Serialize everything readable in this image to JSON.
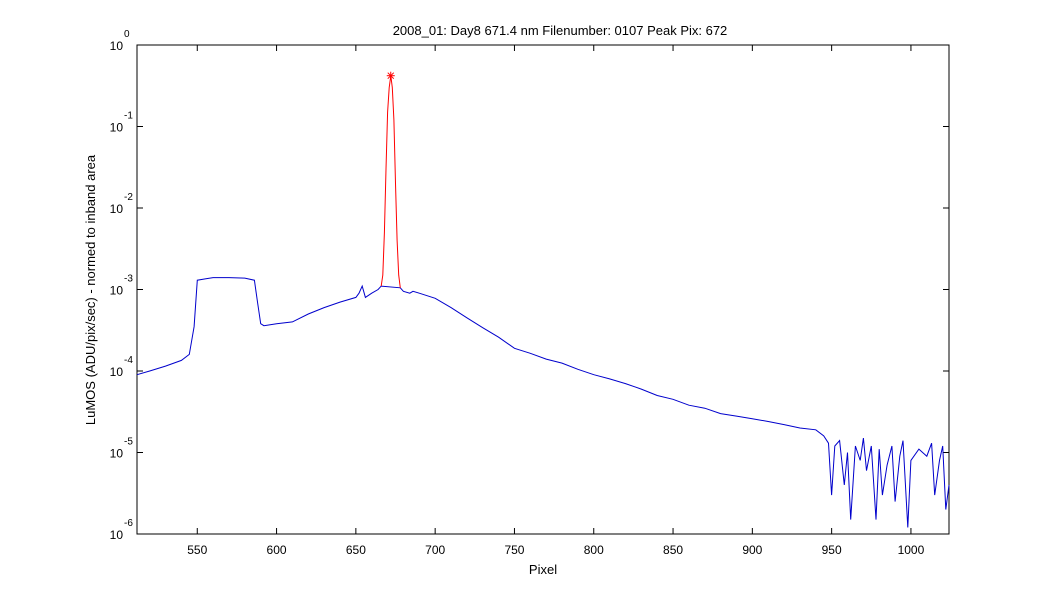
{
  "chart_data": {
    "type": "line",
    "title": "2008_01: Day8  671.4 nm  Filenumber: 0107 Peak Pix: 672",
    "xlabel": "Pixel",
    "ylabel": "LuMOS (ADU/pix/sec) - normed to inband area",
    "xlim": [
      512,
      1024
    ],
    "ylim": [
      1e-06,
      1
    ],
    "yscale": "log",
    "grid": false,
    "x_ticks": [
      550,
      600,
      650,
      700,
      750,
      800,
      850,
      900,
      950,
      1000
    ],
    "x_tick_labels": [
      "550",
      "600",
      "650",
      "700",
      "750",
      "800",
      "850",
      "900",
      "950",
      "1000"
    ],
    "y_ticks": [
      1,
      0.1,
      0.01,
      0.001,
      0.0001,
      1e-05,
      1e-06
    ],
    "y_tick_labels": [
      {
        "base": "10",
        "exp": "0"
      },
      {
        "base": "10",
        "exp": "-1"
      },
      {
        "base": "10",
        "exp": "-2"
      },
      {
        "base": "10",
        "exp": "-3"
      },
      {
        "base": "10",
        "exp": "-4"
      },
      {
        "base": "10",
        "exp": "-5"
      },
      {
        "base": "10",
        "exp": "-6"
      }
    ],
    "series": [
      {
        "color": "#0000cc",
        "x": [
          512,
          520,
          530,
          540,
          545,
          548,
          550,
          555,
          560,
          570,
          580,
          586,
          588,
          590,
          592,
          600,
          610,
          620,
          630,
          640,
          650,
          652,
          654,
          656,
          660,
          664,
          666,
          678,
          680,
          684,
          686,
          690,
          700,
          710,
          720,
          730,
          740,
          750,
          760,
          770,
          780,
          790,
          800,
          810,
          820,
          830,
          840,
          850,
          860,
          870,
          880,
          890,
          900,
          910,
          920,
          930,
          940,
          945,
          948,
          950,
          952,
          955,
          958,
          960,
          962,
          965,
          968,
          970,
          972,
          975,
          978,
          980,
          982,
          985,
          988,
          990,
          993,
          995,
          998,
          1000,
          1005,
          1010,
          1013,
          1015,
          1018,
          1020,
          1022,
          1024
        ],
        "y": [
          9e-05,
          0.0001,
          0.000115,
          0.000135,
          0.00016,
          0.00035,
          0.0013,
          0.00135,
          0.0014,
          0.0014,
          0.00138,
          0.0013,
          0.0007,
          0.00038,
          0.00036,
          0.00038,
          0.0004,
          0.0005,
          0.0006,
          0.0007,
          0.0008,
          0.0009,
          0.0011,
          0.0008,
          0.0009,
          0.001,
          0.0011,
          0.00105,
          0.00095,
          0.0009,
          0.00095,
          0.0009,
          0.00078,
          0.0006,
          0.00045,
          0.00034,
          0.00026,
          0.00019,
          0.000165,
          0.00014,
          0.000125,
          0.000105,
          9e-05,
          8e-05,
          7e-05,
          6e-05,
          5e-05,
          4.5e-05,
          3.8e-05,
          3.5e-05,
          3e-05,
          2.8e-05,
          2.6e-05,
          2.4e-05,
          2.2e-05,
          2e-05,
          1.9e-05,
          1.6e-05,
          1.3e-05,
          3e-06,
          1.2e-05,
          1.4e-05,
          4e-06,
          1e-05,
          1.5e-06,
          1.2e-05,
          8e-06,
          1.5e-05,
          6e-06,
          1.2e-05,
          1.5e-06,
          1.1e-05,
          3e-06,
          7e-06,
          1.2e-05,
          2.5e-06,
          9e-06,
          1.4e-05,
          1.2e-06,
          8e-06,
          1.1e-05,
          9e-06,
          1.3e-05,
          3e-06,
          8e-06,
          1.2e-05,
          2e-06,
          4e-06
        ]
      },
      {
        "color": "#ff0000",
        "x": [
          666,
          667,
          668,
          669,
          670,
          671,
          672,
          673,
          674,
          675,
          676,
          677,
          678
        ],
        "y": [
          0.0011,
          0.0015,
          0.005,
          0.03,
          0.15,
          0.3,
          0.42,
          0.3,
          0.12,
          0.02,
          0.004,
          0.0015,
          0.00105
        ]
      }
    ],
    "annotations": [
      {
        "type": "marker",
        "symbol": "*",
        "color": "#ff0000",
        "x": 672,
        "y": 0.42
      }
    ]
  }
}
